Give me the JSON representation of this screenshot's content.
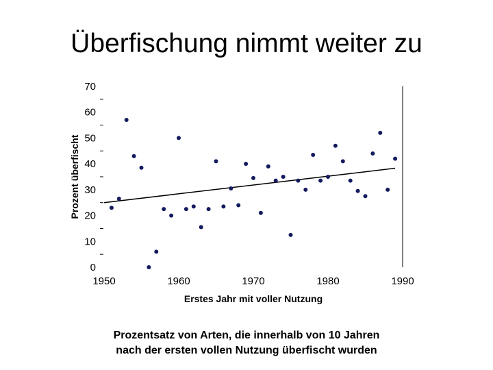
{
  "title": "Überfischung nimmt weiter zu",
  "caption": {
    "line1": "Prozentsatz von Arten, die innerhalb von 10 Jahren",
    "line2": "nach der ersten vollen Nutzung überfischt wurden"
  },
  "colors": {
    "points": "#141a5e",
    "trendline": "#000000",
    "axis": "#000000"
  },
  "chart_data": {
    "type": "scatter",
    "xlabel": "Erstes Jahr mit voller Nutzung",
    "ylabel": "Prozent überfischt",
    "xlim": [
      1950,
      1990
    ],
    "ylim": [
      0,
      70
    ],
    "xticks": [
      "1950",
      "1960",
      "1970",
      "1980",
      "1990"
    ],
    "yticks": [
      "0",
      "10",
      "20",
      "30",
      "40",
      "50",
      "60",
      "70"
    ],
    "grid": false,
    "trendline": {
      "x": [
        1950,
        1989
      ],
      "y": [
        25,
        38.3
      ]
    },
    "points": [
      {
        "x": 1951,
        "y": 23
      },
      {
        "x": 1952,
        "y": 26.5
      },
      {
        "x": 1953,
        "y": 57
      },
      {
        "x": 1954,
        "y": 43
      },
      {
        "x": 1955,
        "y": 38.5
      },
      {
        "x": 1956,
        "y": 0
      },
      {
        "x": 1957,
        "y": 6
      },
      {
        "x": 1958,
        "y": 22.5
      },
      {
        "x": 1959,
        "y": 20
      },
      {
        "x": 1960,
        "y": 50
      },
      {
        "x": 1961,
        "y": 22.5
      },
      {
        "x": 1962,
        "y": 23.5
      },
      {
        "x": 1963,
        "y": 15.5
      },
      {
        "x": 1964,
        "y": 22.5
      },
      {
        "x": 1965,
        "y": 41
      },
      {
        "x": 1966,
        "y": 23.5
      },
      {
        "x": 1967,
        "y": 30.5
      },
      {
        "x": 1968,
        "y": 24
      },
      {
        "x": 1969,
        "y": 40
      },
      {
        "x": 1970,
        "y": 34.5
      },
      {
        "x": 1971,
        "y": 21
      },
      {
        "x": 1972,
        "y": 39
      },
      {
        "x": 1973,
        "y": 33.5
      },
      {
        "x": 1974,
        "y": 35
      },
      {
        "x": 1975,
        "y": 12.5
      },
      {
        "x": 1976,
        "y": 33.5
      },
      {
        "x": 1977,
        "y": 30
      },
      {
        "x": 1978,
        "y": 43.5
      },
      {
        "x": 1979,
        "y": 33.5
      },
      {
        "x": 1980,
        "y": 35
      },
      {
        "x": 1981,
        "y": 47
      },
      {
        "x": 1982,
        "y": 41
      },
      {
        "x": 1983,
        "y": 33.5
      },
      {
        "x": 1984,
        "y": 29.5
      },
      {
        "x": 1985,
        "y": 27.5
      },
      {
        "x": 1986,
        "y": 44
      },
      {
        "x": 1987,
        "y": 52
      },
      {
        "x": 1988,
        "y": 30
      },
      {
        "x": 1989,
        "y": 42
      }
    ]
  }
}
